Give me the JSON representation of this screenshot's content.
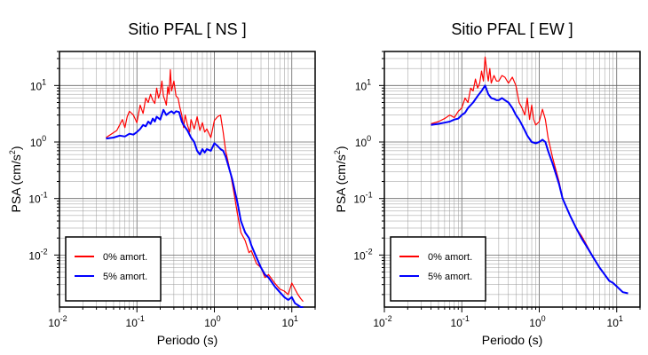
{
  "page": {
    "background": "#ffffff"
  },
  "chart_data": [
    {
      "type": "line",
      "title": "Sitio PFAL [ NS ]",
      "xlabel": "Periodo (s)",
      "ylabel": "PSA (cm/s²)",
      "ylabel_base": "PSA (cm/s",
      "ylabel_sup": "2",
      "ylabel_tail": ")",
      "xscale": "log",
      "yscale": "log",
      "xlim": [
        0.01,
        20
      ],
      "ylim": [
        0.0012,
        40
      ],
      "grid": true,
      "legend_position": "bottom-left",
      "x_ticks": [
        {
          "base": "10",
          "exp": "-2"
        },
        {
          "base": "10",
          "exp": "-1"
        },
        {
          "base": "10",
          "exp": "0"
        },
        {
          "base": "10",
          "exp": "1"
        }
      ],
      "y_ticks": [
        {
          "base": "10",
          "exp": "-2"
        },
        {
          "base": "10",
          "exp": "-1"
        },
        {
          "base": "10",
          "exp": "0"
        },
        {
          "base": "10",
          "exp": "1"
        }
      ],
      "series": [
        {
          "name": "0% amort.",
          "color": "#ff0000",
          "x": [
            0.04,
            0.055,
            0.065,
            0.07,
            0.075,
            0.08,
            0.09,
            0.1,
            0.11,
            0.12,
            0.13,
            0.14,
            0.15,
            0.16,
            0.17,
            0.18,
            0.19,
            0.2,
            0.21,
            0.22,
            0.23,
            0.24,
            0.25,
            0.26,
            0.27,
            0.28,
            0.3,
            0.32,
            0.34,
            0.36,
            0.38,
            0.4,
            0.42,
            0.45,
            0.48,
            0.5,
            0.55,
            0.6,
            0.65,
            0.7,
            0.75,
            0.8,
            0.9,
            1.0,
            1.1,
            1.2,
            1.3,
            1.4,
            1.5,
            1.6,
            1.8,
            2.0,
            2.2,
            2.5,
            2.8,
            3.0,
            3.5,
            4.0,
            4.5,
            5.0,
            6.0,
            7.0,
            8.0,
            9.0,
            10.0,
            11.0,
            12.0,
            13.0,
            14.0
          ],
          "y": [
            1.2,
            1.6,
            2.5,
            1.8,
            2.8,
            3.5,
            3.0,
            2.2,
            4.5,
            3.2,
            6.0,
            5.0,
            7.0,
            5.5,
            4.8,
            9.0,
            6.0,
            7.5,
            12.0,
            6.5,
            5.5,
            4.5,
            9.5,
            7.0,
            19.0,
            8.0,
            12.0,
            6.5,
            6.0,
            4.0,
            3.0,
            1.8,
            3.0,
            2.0,
            1.5,
            2.5,
            1.7,
            2.8,
            1.6,
            2.2,
            1.5,
            1.7,
            1.2,
            2.4,
            2.8,
            3.0,
            1.5,
            0.7,
            0.45,
            0.3,
            0.12,
            0.05,
            0.025,
            0.018,
            0.011,
            0.012,
            0.007,
            0.006,
            0.004,
            0.0045,
            0.0032,
            0.0025,
            0.0023,
            0.002,
            0.0032,
            0.0025,
            0.002,
            0.0017,
            0.0015
          ]
        },
        {
          "name": "5% amort.",
          "color": "#0000ff",
          "x": [
            0.04,
            0.05,
            0.06,
            0.07,
            0.08,
            0.09,
            0.1,
            0.11,
            0.12,
            0.13,
            0.14,
            0.15,
            0.16,
            0.17,
            0.18,
            0.2,
            0.22,
            0.24,
            0.26,
            0.28,
            0.3,
            0.32,
            0.35,
            0.38,
            0.4,
            0.45,
            0.5,
            0.55,
            0.6,
            0.65,
            0.7,
            0.75,
            0.8,
            0.9,
            1.0,
            1.1,
            1.2,
            1.3,
            1.4,
            1.5,
            1.7,
            2.0,
            2.2,
            2.5,
            2.8,
            3.0,
            3.5,
            4.0,
            4.5,
            5.0,
            6.0,
            7.0,
            8.0,
            9.0,
            10.0,
            11.0,
            12.0,
            13.0,
            14.0
          ],
          "y": [
            1.15,
            1.2,
            1.3,
            1.25,
            1.4,
            1.35,
            1.5,
            1.7,
            2.0,
            1.9,
            2.3,
            2.1,
            2.6,
            2.3,
            2.8,
            2.5,
            3.7,
            3.0,
            3.3,
            3.5,
            3.2,
            3.5,
            3.4,
            2.3,
            2.0,
            1.6,
            1.2,
            1.0,
            0.7,
            0.6,
            0.75,
            0.65,
            0.75,
            0.7,
            0.95,
            0.85,
            0.75,
            0.7,
            0.55,
            0.4,
            0.22,
            0.08,
            0.04,
            0.025,
            0.02,
            0.015,
            0.009,
            0.006,
            0.0045,
            0.004,
            0.0028,
            0.0022,
            0.0018,
            0.0016,
            0.0018,
            0.0014,
            0.0013,
            0.0012,
            0.0012
          ]
        }
      ]
    },
    {
      "type": "line",
      "title": "Sitio PFAL [ EW ]",
      "xlabel": "Periodo (s)",
      "ylabel": "PSA (cm/s²)",
      "ylabel_base": "PSA (cm/s",
      "ylabel_sup": "2",
      "ylabel_tail": ")",
      "xscale": "log",
      "yscale": "log",
      "xlim": [
        0.01,
        20
      ],
      "ylim": [
        0.0012,
        40
      ],
      "grid": true,
      "legend_position": "bottom-left",
      "x_ticks": [
        {
          "base": "10",
          "exp": "-2"
        },
        {
          "base": "10",
          "exp": "-1"
        },
        {
          "base": "10",
          "exp": "0"
        },
        {
          "base": "10",
          "exp": "1"
        }
      ],
      "y_ticks": [
        {
          "base": "10",
          "exp": "-2"
        },
        {
          "base": "10",
          "exp": "-1"
        },
        {
          "base": "10",
          "exp": "0"
        },
        {
          "base": "10",
          "exp": "1"
        }
      ],
      "series": [
        {
          "name": "0% amort.",
          "color": "#ff0000",
          "x": [
            0.04,
            0.05,
            0.06,
            0.07,
            0.08,
            0.09,
            0.1,
            0.11,
            0.12,
            0.13,
            0.14,
            0.15,
            0.16,
            0.17,
            0.18,
            0.19,
            0.2,
            0.21,
            0.22,
            0.23,
            0.24,
            0.26,
            0.28,
            0.3,
            0.33,
            0.36,
            0.4,
            0.45,
            0.5,
            0.55,
            0.6,
            0.65,
            0.7,
            0.75,
            0.8,
            0.85,
            0.9,
            1.0,
            1.1,
            1.2,
            1.3,
            1.5,
            1.8,
            2.0,
            2.5,
            3.0,
            3.5,
            4.0,
            5.0,
            6.0,
            7.0,
            8.0,
            9.0,
            10.0,
            12.0,
            14.0
          ],
          "y": [
            2.1,
            2.3,
            2.6,
            3.0,
            2.7,
            3.5,
            4.0,
            6.0,
            5.0,
            9.0,
            8.0,
            13.0,
            9.0,
            11.0,
            18.0,
            12.0,
            32.0,
            18.0,
            12.0,
            20.0,
            11.0,
            15.0,
            12.0,
            12.0,
            15.0,
            14.0,
            11.0,
            14.0,
            10.0,
            5.0,
            4.0,
            3.0,
            6.0,
            2.5,
            4.5,
            2.5,
            2.0,
            2.3,
            3.8,
            2.5,
            1.2,
            0.5,
            0.2,
            0.1,
            0.05,
            0.03,
            0.022,
            0.016,
            0.009,
            0.006,
            0.0045,
            0.0035,
            0.0032,
            0.0028,
            0.0022,
            0.0021
          ]
        },
        {
          "name": "5% amort.",
          "color": "#0000ff",
          "x": [
            0.04,
            0.05,
            0.06,
            0.07,
            0.08,
            0.09,
            0.1,
            0.11,
            0.12,
            0.14,
            0.16,
            0.18,
            0.2,
            0.22,
            0.24,
            0.26,
            0.28,
            0.3,
            0.33,
            0.36,
            0.4,
            0.45,
            0.5,
            0.55,
            0.6,
            0.65,
            0.7,
            0.8,
            0.9,
            1.0,
            1.1,
            1.2,
            1.3,
            1.5,
            1.8,
            2.0,
            2.5,
            3.0,
            3.5,
            4.0,
            5.0,
            6.0,
            7.0,
            8.0,
            9.0,
            10.0,
            12.0,
            14.0
          ],
          "y": [
            2.0,
            2.1,
            2.2,
            2.3,
            2.5,
            2.6,
            3.0,
            3.3,
            4.0,
            5.0,
            6.5,
            8.0,
            10.0,
            7.0,
            6.0,
            5.8,
            5.5,
            5.5,
            6.0,
            5.5,
            5.0,
            4.0,
            3.0,
            2.5,
            2.0,
            1.6,
            1.3,
            1.0,
            0.95,
            1.0,
            1.1,
            1.0,
            0.7,
            0.4,
            0.18,
            0.1,
            0.05,
            0.03,
            0.02,
            0.015,
            0.009,
            0.006,
            0.0045,
            0.0035,
            0.0032,
            0.0028,
            0.0022,
            0.0021
          ]
        }
      ]
    }
  ]
}
